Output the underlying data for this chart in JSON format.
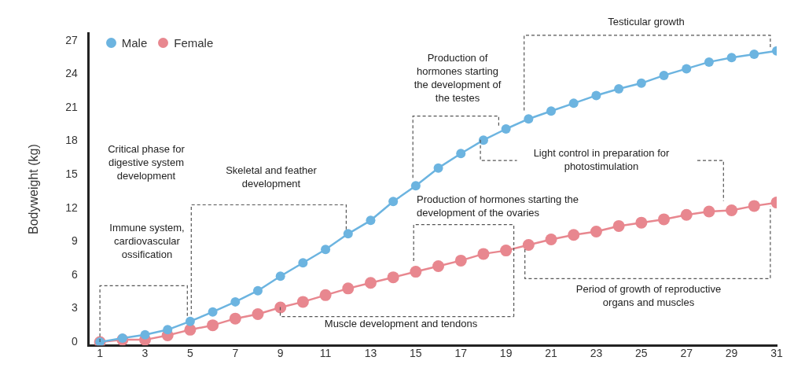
{
  "chart_data": {
    "type": "line",
    "ylabel": "Bodyweight (kg)",
    "x": [
      1,
      2,
      3,
      4,
      5,
      6,
      7,
      8,
      9,
      10,
      11,
      12,
      13,
      14,
      15,
      16,
      17,
      18,
      19,
      20,
      21,
      22,
      23,
      24,
      25,
      26,
      27,
      28,
      29,
      30,
      31
    ],
    "series": [
      {
        "name": "Male",
        "color": "#6cb4e0",
        "values": [
          0,
          0.35,
          0.65,
          1.1,
          1.85,
          2.7,
          3.6,
          4.6,
          5.9,
          7.1,
          8.3,
          9.7,
          10.9,
          12.6,
          14.0,
          15.6,
          16.9,
          18.1,
          19.1,
          20.0,
          20.7,
          21.4,
          22.1,
          22.7,
          23.2,
          23.9,
          24.5,
          25.1,
          25.5,
          25.8,
          26.1
        ]
      },
      {
        "name": "Female",
        "color": "#e8878f",
        "values": [
          0,
          0.2,
          0.2,
          0.6,
          1.1,
          1.5,
          2.1,
          2.5,
          3.1,
          3.6,
          4.2,
          4.8,
          5.3,
          5.8,
          6.3,
          6.8,
          7.3,
          7.9,
          8.2,
          8.7,
          9.2,
          9.6,
          9.9,
          10.4,
          10.7,
          11.0,
          11.4,
          11.7,
          11.8,
          12.2,
          12.5
        ]
      }
    ],
    "xlim": [
      0.5,
      31
    ],
    "xticks": [
      1,
      3,
      5,
      7,
      9,
      11,
      13,
      15,
      17,
      19,
      21,
      23,
      25,
      27,
      29,
      31
    ],
    "ylim": [
      -0.3,
      27.7
    ],
    "yticks": [
      0,
      3,
      6,
      9,
      12,
      15,
      18,
      21,
      24,
      27
    ],
    "grid": false,
    "legend": "top left",
    "marker": "circle",
    "line_style": "solid",
    "annotations": [
      "Critical phase for digestive system development",
      "Immune system, cardiovascular ossification",
      "Skeletal and feather development",
      "Production of hormones starting the development of the testes",
      "Testicular growth",
      "Light control in preparation for photostimulation",
      "Production of hormones starting the development of the ovaries",
      "Muscle development and tendons",
      "Period of growth of reproductive organs and muscles"
    ]
  }
}
